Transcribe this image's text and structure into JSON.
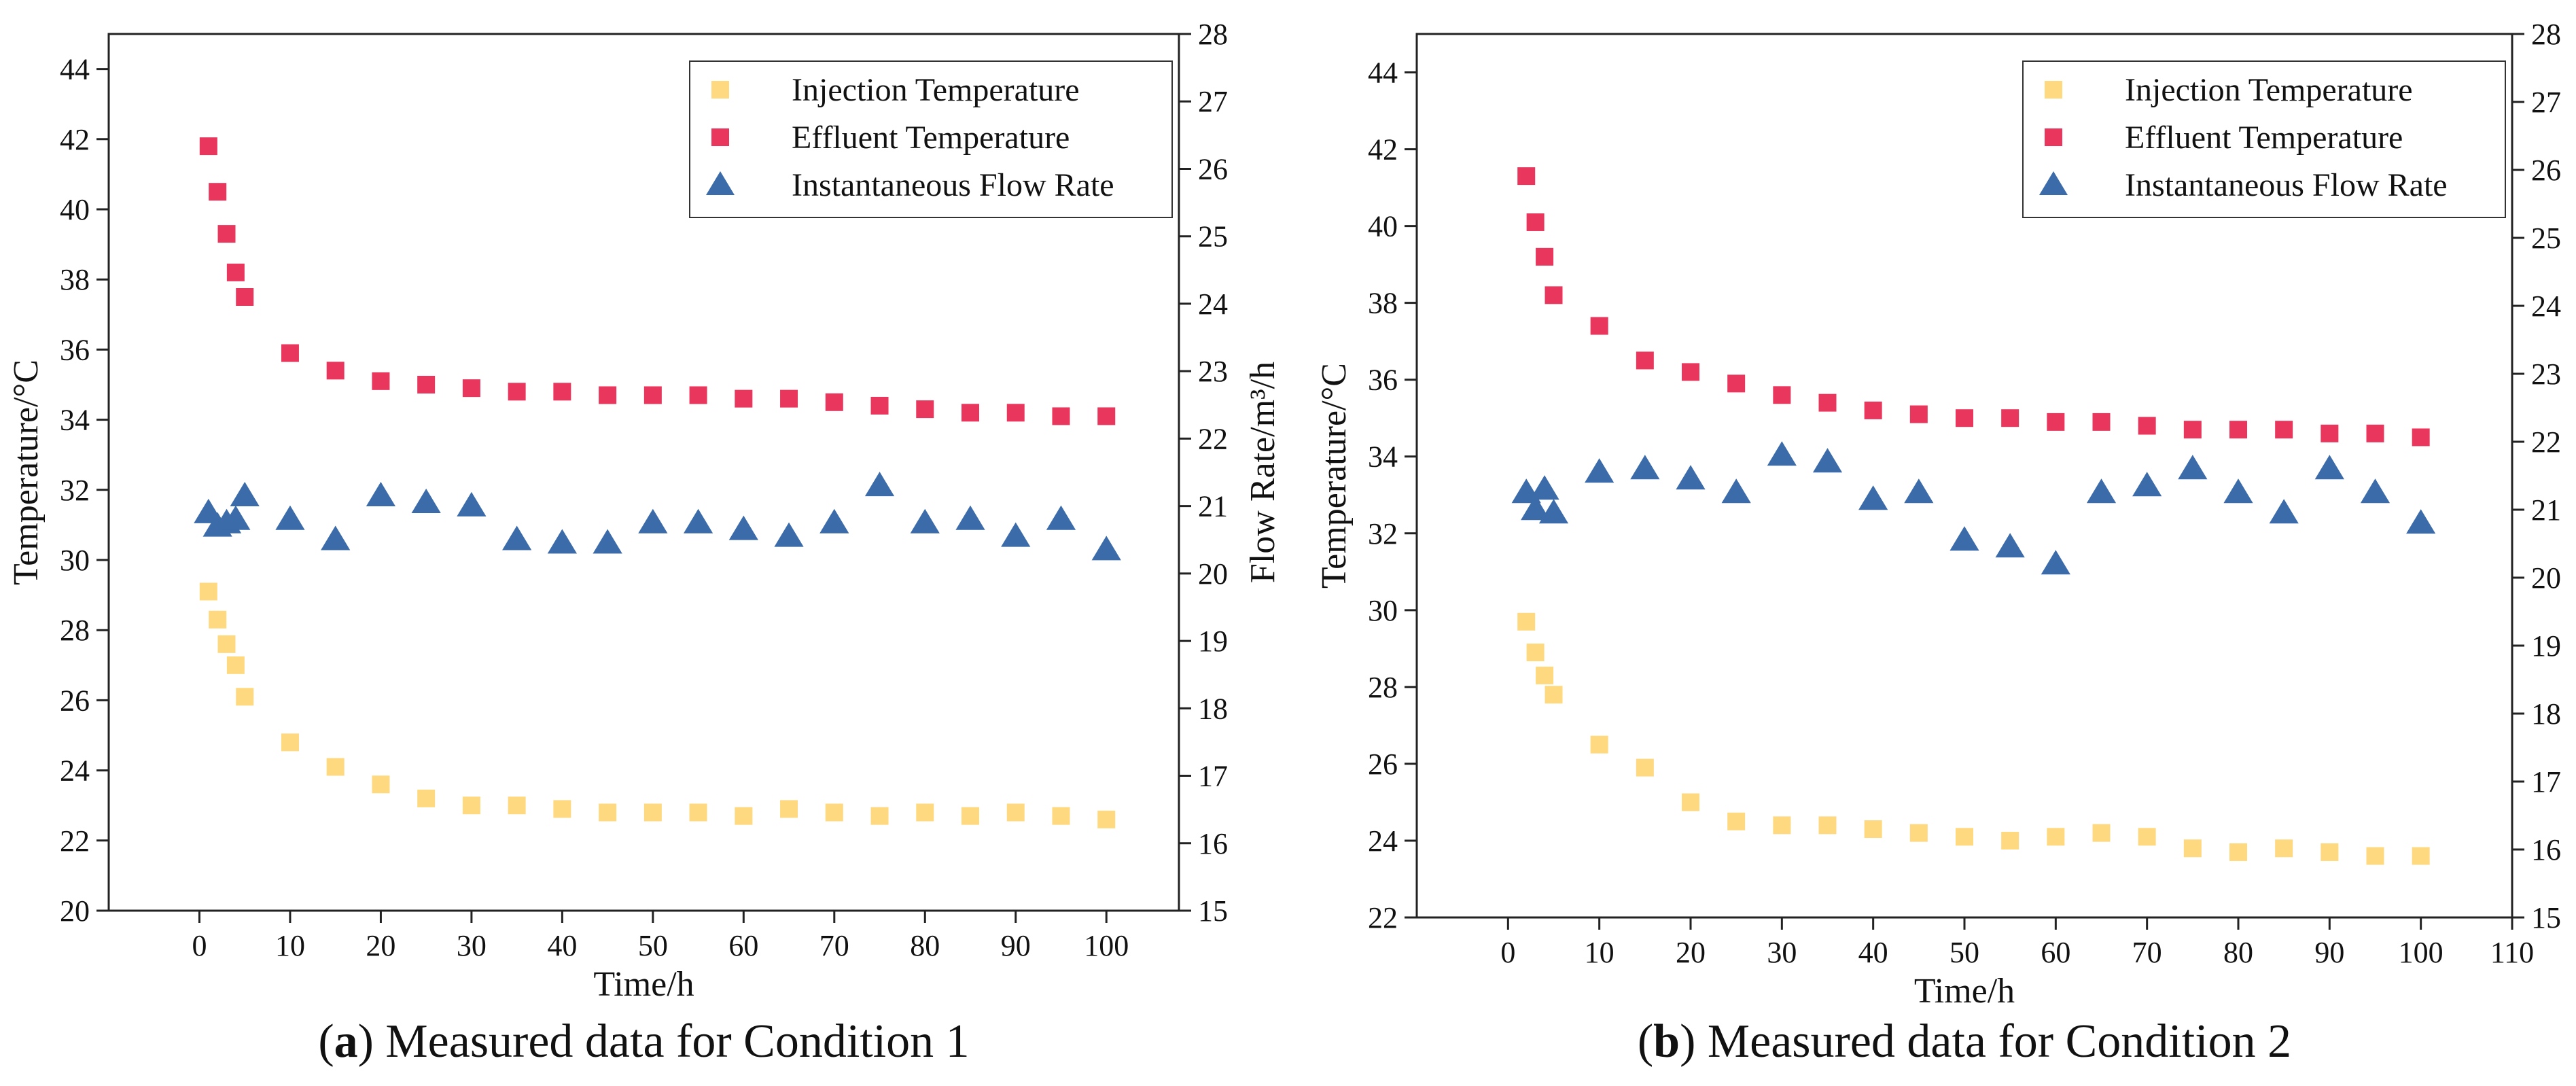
{
  "chart_data": [
    {
      "type": "scatter",
      "panel_tag": "a",
      "caption": ") Measured data for Condition 1",
      "xlabel": "Time/h",
      "ylabel_left": "Temperature/°C",
      "ylabel_right": "Flow Rate/m³/h",
      "xlim": [
        -10,
        108
      ],
      "ylim_left": [
        20,
        45
      ],
      "ylim_right": [
        15,
        28
      ],
      "xticks": [
        0,
        10,
        20,
        30,
        40,
        50,
        60,
        70,
        80,
        90,
        100
      ],
      "yticks_left": [
        20,
        22,
        24,
        26,
        28,
        30,
        32,
        34,
        36,
        38,
        40,
        42,
        44
      ],
      "yticks_right": [
        15,
        16,
        17,
        18,
        19,
        20,
        21,
        22,
        23,
        24,
        25,
        26,
        27,
        28
      ],
      "legend_position": "top-right",
      "series": [
        {
          "name": "Injection Temperature",
          "axis": "left",
          "marker": "square",
          "color": "#FFD980",
          "x": [
            1,
            2,
            3,
            4,
            5,
            10,
            15,
            20,
            25,
            30,
            35,
            40,
            45,
            50,
            55,
            60,
            65,
            70,
            75,
            80,
            85,
            90,
            95,
            100
          ],
          "y": [
            29.1,
            28.3,
            27.6,
            27.0,
            26.1,
            24.8,
            24.1,
            23.6,
            23.2,
            23.0,
            23.0,
            22.9,
            22.8,
            22.8,
            22.8,
            22.7,
            22.9,
            22.8,
            22.7,
            22.8,
            22.7,
            22.8,
            22.7,
            22.6
          ]
        },
        {
          "name": "Effluent Temperature",
          "axis": "left",
          "marker": "square",
          "color": "#E8365D",
          "x": [
            1,
            2,
            3,
            4,
            5,
            10,
            15,
            20,
            25,
            30,
            35,
            40,
            45,
            50,
            55,
            60,
            65,
            70,
            75,
            80,
            85,
            90,
            95,
            100
          ],
          "y": [
            41.8,
            40.5,
            39.3,
            38.2,
            37.5,
            35.9,
            35.4,
            35.1,
            35.0,
            34.9,
            34.8,
            34.8,
            34.7,
            34.7,
            34.7,
            34.6,
            34.6,
            34.5,
            34.4,
            34.3,
            34.2,
            34.2,
            34.1,
            34.1
          ]
        },
        {
          "name": "Instantaneous Flow Rate",
          "axis": "right",
          "marker": "triangle",
          "color": "#3B6BA8",
          "x": [
            1,
            2,
            3,
            4,
            5,
            10,
            15,
            20,
            25,
            30,
            35,
            40,
            45,
            50,
            55,
            60,
            65,
            70,
            75,
            80,
            85,
            90,
            95,
            100
          ],
          "y": [
            20.9,
            20.7,
            20.75,
            20.8,
            21.15,
            20.8,
            20.5,
            21.15,
            21.05,
            21.0,
            20.5,
            20.45,
            20.45,
            20.75,
            20.75,
            20.65,
            20.55,
            20.75,
            21.3,
            20.75,
            20.8,
            20.55,
            20.8,
            20.35
          ]
        }
      ]
    },
    {
      "type": "scatter",
      "panel_tag": "b",
      "caption": ") Measured data for Condition 2",
      "xlabel": "Time/h",
      "ylabel_left": "Temperature/°C",
      "ylabel_right": "Flow Rate/m³/h",
      "xlim": [
        -10,
        110
      ],
      "ylim_left": [
        22,
        45
      ],
      "ylim_right": [
        15,
        28
      ],
      "xticks": [
        0,
        10,
        20,
        30,
        40,
        50,
        60,
        70,
        80,
        90,
        100,
        110
      ],
      "yticks_left": [
        22,
        24,
        26,
        28,
        30,
        32,
        34,
        36,
        38,
        40,
        42,
        44
      ],
      "yticks_right": [
        15,
        16,
        17,
        18,
        19,
        20,
        21,
        22,
        23,
        24,
        25,
        26,
        27,
        28
      ],
      "legend_position": "top-right",
      "series": [
        {
          "name": "Injection Temperature",
          "axis": "left",
          "marker": "square",
          "color": "#FFD980",
          "x": [
            2,
            3,
            4,
            5,
            10,
            15,
            20,
            25,
            30,
            35,
            40,
            45,
            50,
            55,
            60,
            65,
            70,
            75,
            80,
            85,
            90,
            95,
            100
          ],
          "y": [
            29.7,
            28.9,
            28.3,
            27.8,
            26.5,
            25.9,
            25.0,
            24.5,
            24.4,
            24.4,
            24.3,
            24.2,
            24.1,
            24.0,
            24.1,
            24.2,
            24.1,
            23.8,
            23.7,
            23.8,
            23.7,
            23.6,
            23.6
          ]
        },
        {
          "name": "Effluent Temperature",
          "axis": "left",
          "marker": "square",
          "color": "#E8365D",
          "x": [
            2,
            3,
            4,
            5,
            10,
            15,
            20,
            25,
            30,
            35,
            40,
            45,
            50,
            55,
            60,
            65,
            70,
            75,
            80,
            85,
            90,
            95,
            100
          ],
          "y": [
            41.3,
            40.1,
            39.2,
            38.2,
            37.4,
            36.5,
            36.2,
            35.9,
            35.6,
            35.4,
            35.2,
            35.1,
            35.0,
            35.0,
            34.9,
            34.9,
            34.8,
            34.7,
            34.7,
            34.7,
            34.6,
            34.6,
            34.5
          ]
        },
        {
          "name": "Instantaneous Flow Rate",
          "axis": "right",
          "marker": "triangle",
          "color": "#3B6BA8",
          "x": [
            2,
            3,
            4,
            5,
            10,
            15,
            20,
            25,
            30,
            35,
            40,
            45,
            50,
            55,
            60,
            65,
            70,
            75,
            80,
            85,
            90,
            95,
            100
          ],
          "y": [
            21.25,
            21.0,
            21.3,
            20.95,
            21.55,
            21.6,
            21.45,
            21.25,
            21.8,
            21.7,
            21.15,
            21.25,
            20.55,
            20.45,
            20.2,
            21.25,
            21.35,
            21.6,
            21.25,
            20.95,
            21.6,
            21.25,
            20.8
          ]
        }
      ]
    }
  ]
}
